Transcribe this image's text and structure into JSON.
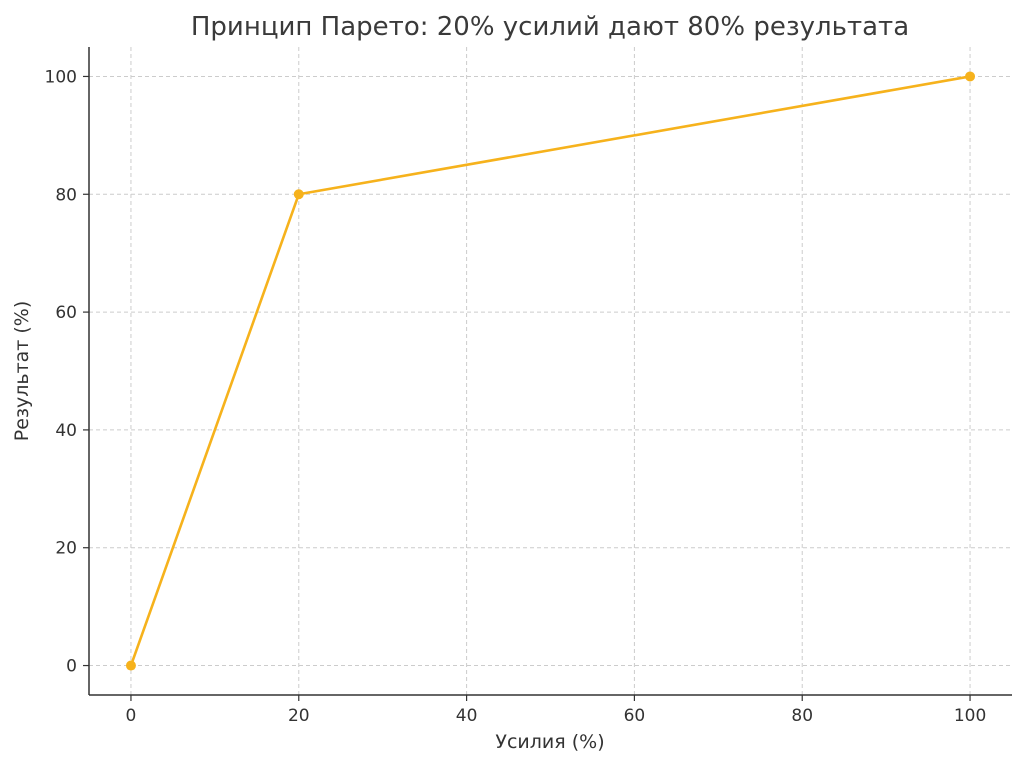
{
  "chart_data": {
    "type": "line",
    "title": "Принцип Парето: 20% усилий дают 80% результата",
    "xlabel": "Усилия (%)",
    "ylabel": "Результат (%)",
    "x": [
      0,
      20,
      100
    ],
    "series": [
      {
        "values": [
          0,
          80,
          100
        ],
        "color": "#F6B21C",
        "marker": "circle"
      }
    ],
    "xlim": [
      -5,
      105
    ],
    "ylim": [
      -5,
      105
    ],
    "xticks": [
      0,
      20,
      40,
      60,
      80,
      100
    ],
    "yticks": [
      0,
      20,
      40,
      60,
      80,
      100
    ],
    "grid": true,
    "legend": "none"
  }
}
